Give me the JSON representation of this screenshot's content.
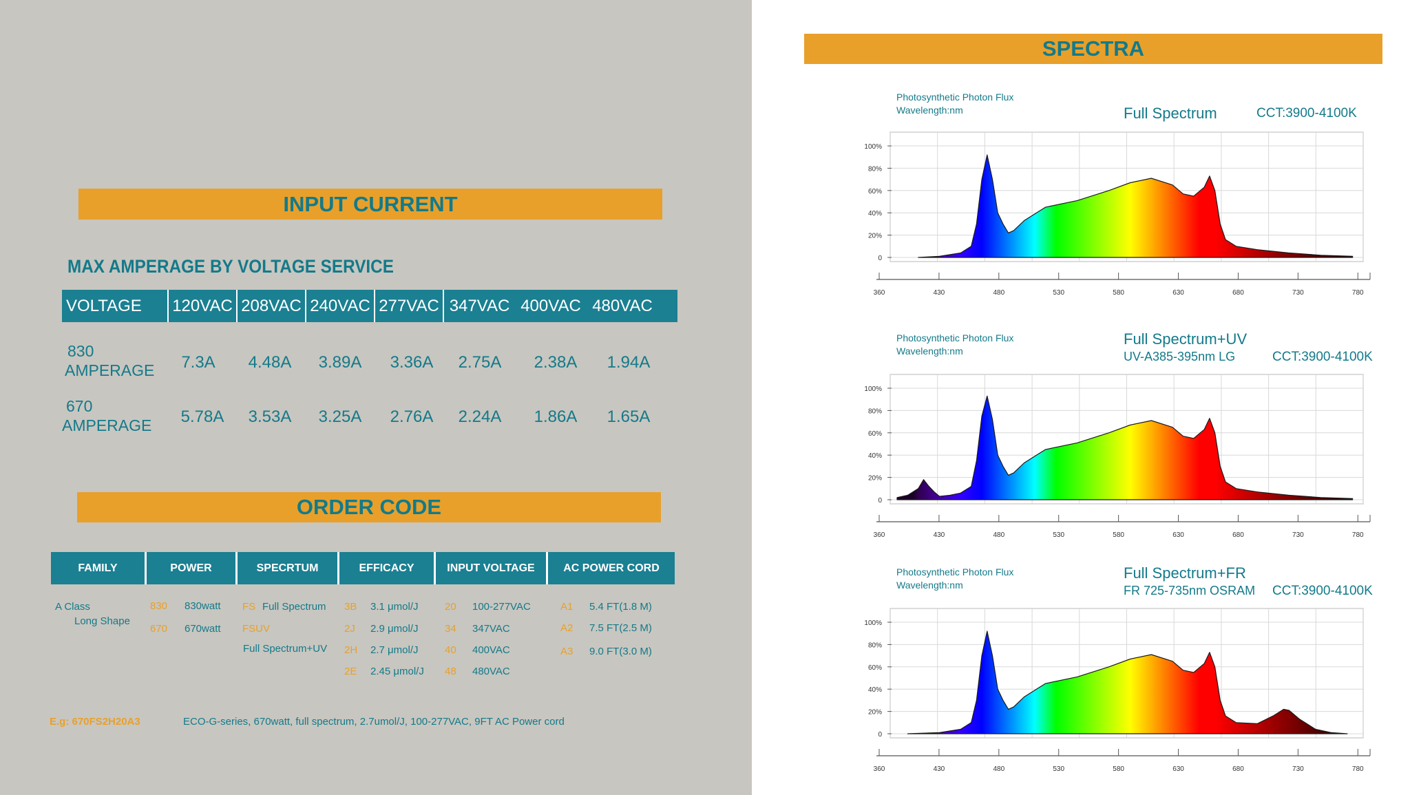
{
  "input_current": {
    "section_title": "INPUT CURRENT",
    "subtitle": "MAX AMPERAGE BY VOLTAGE SERVICE",
    "header_label": "VOLTAGE",
    "voltages": [
      "120VAC",
      "208VAC",
      "240VAC",
      "277VAC",
      "347VAC",
      "400VAC",
      "480VAC"
    ],
    "rows": [
      {
        "label_line1": "830",
        "label_line2": "AMPERAGE",
        "values": [
          "7.3A",
          "4.48A",
          "3.89A",
          "3.36A",
          "2.75A",
          "2.38A",
          "1.94A"
        ]
      },
      {
        "label_line1": "670",
        "label_line2": "AMPERAGE",
        "values": [
          "5.78A",
          "3.53A",
          "3.25A",
          "2.76A",
          "2.24A",
          "1.86A",
          "1.65A"
        ]
      }
    ]
  },
  "order_code": {
    "section_title": "ORDER CODE",
    "headers": [
      "FAMILY",
      "POWER",
      "SPECRTUM",
      "EFFICACY",
      "INPUT VOLTAGE",
      "AC POWER CORD"
    ],
    "family": {
      "line1": "A Class",
      "line2": "Long Shape"
    },
    "power": [
      {
        "code": "830",
        "text": "830watt"
      },
      {
        "code": "670",
        "text": "670watt"
      }
    ],
    "spectrum": [
      {
        "code": "FS",
        "text": "Full Spectrum"
      },
      {
        "code": "FSUV",
        "text": ""
      },
      {
        "code": "",
        "text": "Full Spectrum+UV"
      }
    ],
    "efficacy": [
      {
        "code": "3B",
        "text": "3.1 μmol/J"
      },
      {
        "code": "2J",
        "text": "2.9 μmol/J"
      },
      {
        "code": "2H",
        "text": "2.7 μmol/J"
      },
      {
        "code": "2E",
        "text": "2.45 μmol/J"
      }
    ],
    "input_voltage": [
      {
        "code": "20",
        "text": "100-277VAC"
      },
      {
        "code": "34",
        "text": "347VAC"
      },
      {
        "code": "40",
        "text": "400VAC"
      },
      {
        "code": "48",
        "text": "480VAC"
      }
    ],
    "ac_power_cord": [
      {
        "code": "A1",
        "text": "5.4 FT(1.8 M)"
      },
      {
        "code": "A2",
        "text": "7.5 FT(2.5 M)"
      },
      {
        "code": "A3",
        "text": "9.0 FT(3.0 M)"
      }
    ],
    "example_code": "E.g: 670FS2H20A3",
    "example_text": "ECO-G-series, 670watt, full spectrum, 2.7umol/J, 100-277VAC, 9FT AC Power cord"
  },
  "spectra": {
    "section_title": "SPECTRA",
    "y_label_line1": "Photosynthetic Photon Flux",
    "y_label_line2": "Wavelength:nm",
    "y_ticks": [
      "100%",
      "80%",
      "60%",
      "40%",
      "20%",
      "0"
    ],
    "x_ticks": [
      "360",
      "430",
      "480",
      "530",
      "580",
      "630",
      "680",
      "730",
      "780"
    ]
  },
  "colors": {
    "orange": "#e8a02a",
    "teal": "#137a8a",
    "header_teal": "#1a8092",
    "panel_gray": "#c8c6c0"
  },
  "chart_data": [
    {
      "type": "area",
      "title": "Full Spectrum",
      "subtitle": "",
      "cct": "CCT:3900-4100K",
      "xlim": [
        360,
        800
      ],
      "ylim": [
        0,
        100
      ],
      "grid": true,
      "x": [
        380,
        400,
        420,
        430,
        435,
        440,
        445,
        450,
        455,
        460,
        465,
        470,
        480,
        500,
        530,
        560,
        580,
        600,
        620,
        630,
        640,
        650,
        655,
        660,
        665,
        670,
        680,
        700,
        730,
        760,
        790
      ],
      "values": [
        0,
        1,
        4,
        10,
        30,
        70,
        92,
        70,
        40,
        30,
        22,
        24,
        33,
        45,
        51,
        60,
        67,
        71,
        65,
        57,
        55,
        63,
        73,
        60,
        30,
        16,
        10,
        7,
        4,
        2,
        1
      ]
    },
    {
      "type": "area",
      "title": "Full Spectrum+UV",
      "subtitle": "UV-A385-395nm LG",
      "cct": "CCT:3900-4100K",
      "xlim": [
        360,
        800
      ],
      "ylim": [
        0,
        100
      ],
      "grid": true,
      "x": [
        360,
        370,
        380,
        385,
        390,
        395,
        400,
        410,
        420,
        430,
        435,
        440,
        445,
        450,
        455,
        460,
        465,
        470,
        480,
        500,
        530,
        560,
        580,
        600,
        620,
        630,
        640,
        650,
        655,
        660,
        665,
        670,
        680,
        700,
        730,
        760,
        790
      ],
      "values": [
        2,
        4,
        10,
        18,
        12,
        7,
        3,
        4,
        6,
        12,
        35,
        75,
        93,
        72,
        40,
        30,
        22,
        24,
        33,
        45,
        51,
        60,
        67,
        71,
        65,
        57,
        55,
        63,
        73,
        60,
        30,
        16,
        10,
        7,
        4,
        2,
        1
      ]
    },
    {
      "type": "area",
      "title": "Full Spectrum+FR",
      "subtitle": "FR 725-735nm OSRAM",
      "cct": "CCT:3900-4100K",
      "xlim": [
        360,
        800
      ],
      "ylim": [
        0,
        100
      ],
      "grid": true,
      "x": [
        370,
        400,
        420,
        430,
        435,
        440,
        445,
        450,
        455,
        460,
        465,
        470,
        480,
        500,
        530,
        560,
        580,
        600,
        620,
        630,
        640,
        650,
        655,
        660,
        665,
        670,
        680,
        700,
        715,
        725,
        730,
        740,
        755,
        770,
        785
      ],
      "values": [
        0,
        1,
        4,
        10,
        30,
        70,
        92,
        70,
        40,
        30,
        22,
        24,
        33,
        45,
        51,
        60,
        67,
        71,
        65,
        57,
        55,
        63,
        73,
        60,
        30,
        16,
        10,
        9,
        16,
        22,
        21,
        13,
        4,
        1,
        0
      ]
    }
  ]
}
